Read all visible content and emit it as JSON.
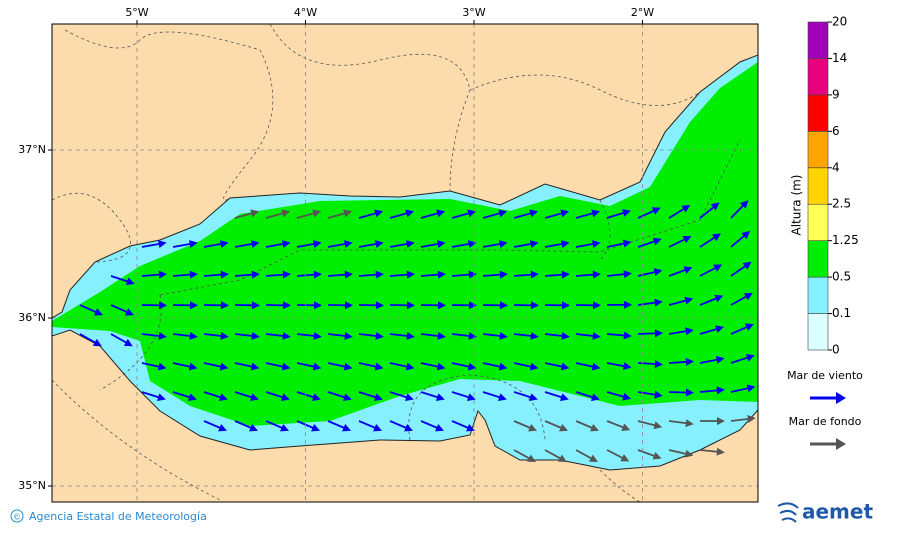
{
  "map": {
    "lon_ticks": [
      {
        "value": -5,
        "label": "5°W"
      },
      {
        "value": -4,
        "label": "4°W"
      },
      {
        "value": -3,
        "label": "3°W"
      },
      {
        "value": -2,
        "label": "2°W"
      }
    ],
    "lat_ticks": [
      {
        "value": 37,
        "label": "37°N"
      },
      {
        "value": 36,
        "label": "36°N"
      },
      {
        "value": 35,
        "label": "35°N"
      }
    ],
    "colorbar": {
      "title": "Altura (m)",
      "levels": [
        0,
        0.1,
        0.5,
        1.25,
        2.5,
        4,
        6,
        9,
        14,
        20
      ],
      "colors": [
        "#dcffff",
        "#86f0ff",
        "#00ee00",
        "#ffff55",
        "#ffd400",
        "#ffa500",
        "#ff0000",
        "#e8007e",
        "#a000b8"
      ]
    },
    "legend": [
      {
        "name": "Mar de viento",
        "color": "#0000ee"
      },
      {
        "name": "Mar de fondo",
        "color": "#555555"
      }
    ],
    "footer": {
      "symbol": "©",
      "text": "Agencia Estatal de Meteorología",
      "logo": "aemet"
    }
  }
}
